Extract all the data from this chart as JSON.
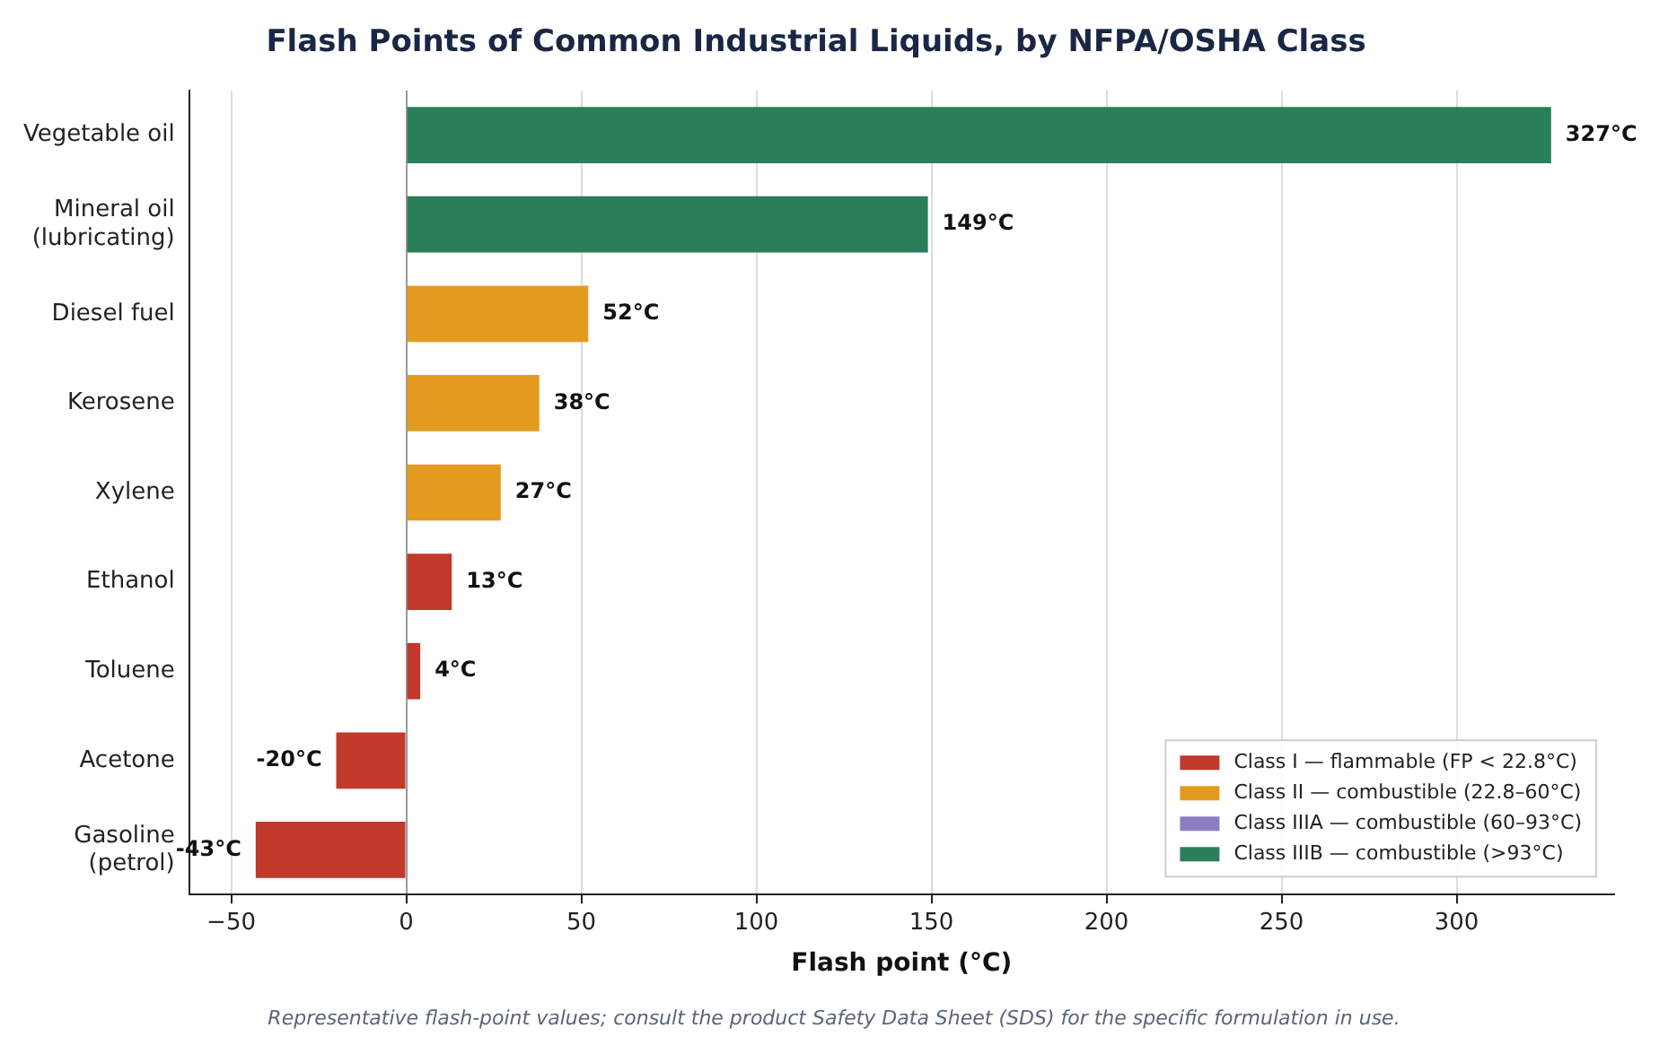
{
  "chart_data": {
    "type": "bar",
    "orientation": "horizontal",
    "title": "Flash Points of Common Industrial Liquids, by NFPA/OSHA Class",
    "xlabel": "Flash point (°C)",
    "categories": [
      "Vegetable oil",
      "Mineral oil\n(lubricating)",
      "Diesel fuel",
      "Kerosene",
      "Xylene",
      "Ethanol",
      "Toluene",
      "Acetone",
      "Gasoline\n(petrol)"
    ],
    "series": [
      {
        "name": "Class I — flammable (FP < 22.8°C)",
        "color": "#c0392b",
        "values": [
          null,
          null,
          null,
          null,
          null,
          13,
          4,
          -20,
          -43
        ],
        "value_labels": [
          null,
          null,
          null,
          null,
          null,
          "13°C",
          "4°C",
          "-20°C",
          "-43°C"
        ]
      },
      {
        "name": "Class II — combustible (22.8–60°C)",
        "color": "#e39b1f",
        "values": [
          null,
          null,
          52,
          38,
          27,
          null,
          null,
          null,
          null
        ],
        "value_labels": [
          null,
          null,
          "52°C",
          "38°C",
          "27°C",
          null,
          null,
          null,
          null
        ]
      },
      {
        "name": "Class IIIA — combustible (60–93°C)",
        "color": "#8e7cc3",
        "values": [
          null,
          null,
          null,
          null,
          null,
          null,
          null,
          null,
          null
        ]
      },
      {
        "name": "Class IIIB — combustible (>93°C)",
        "color": "#2a7f5a",
        "values": [
          327,
          149,
          null,
          null,
          null,
          null,
          null,
          null,
          null
        ],
        "value_labels": [
          "327°C",
          "149°C",
          null,
          null,
          null,
          null,
          null,
          null,
          null
        ]
      }
    ],
    "xlim": [
      -62,
      345
    ],
    "xticks": [
      {
        "value": -50,
        "label": "−50"
      },
      0,
      50,
      100,
      150,
      200,
      250,
      300
    ],
    "grid": "x",
    "legend": "bottom right",
    "annotations": [
      "Representative flash-point values; consult the product Safety Data Sheet (SDS) for the specific formulation in use."
    ]
  }
}
